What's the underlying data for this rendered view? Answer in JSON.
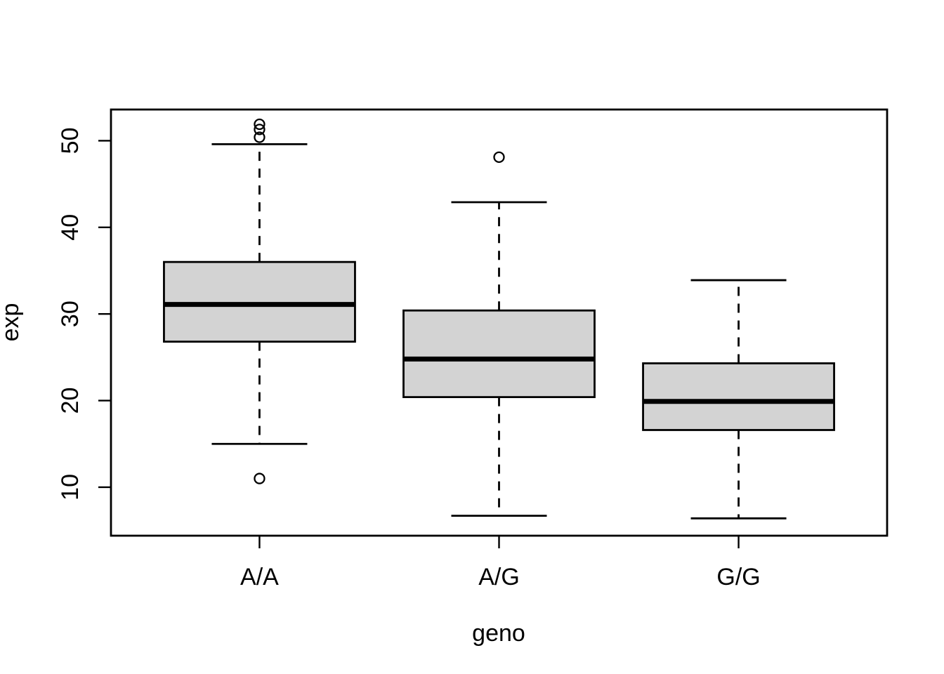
{
  "figure": {
    "background": "#ffffff",
    "stroke": "#000000",
    "box_fill": "#d3d3d3"
  },
  "chart_data": {
    "type": "boxplot",
    "title": "",
    "xlabel": "geno",
    "ylabel": "exp",
    "categories": [
      "A/A",
      "A/G",
      "G/G"
    ],
    "y_ticks": [
      "10",
      "20",
      "30",
      "40",
      "50"
    ],
    "y_tick_values": [
      10,
      20,
      30,
      40,
      50
    ],
    "ylim": [
      4.4,
      53.6
    ],
    "grid": "off",
    "legend": "none",
    "series": [
      {
        "category": "A/A",
        "lower_whisker": 15.0,
        "q1": 26.8,
        "median": 31.1,
        "q3": 36.0,
        "upper_whisker": 49.6,
        "outliers": [
          51.9,
          51.3,
          50.4,
          11.0
        ]
      },
      {
        "category": "A/G",
        "lower_whisker": 6.7,
        "q1": 20.4,
        "median": 24.8,
        "q3": 30.4,
        "upper_whisker": 42.9,
        "outliers": [
          48.1
        ]
      },
      {
        "category": "G/G",
        "lower_whisker": 6.4,
        "q1": 16.6,
        "median": 19.9,
        "q3": 24.3,
        "upper_whisker": 33.9,
        "outliers": []
      }
    ]
  }
}
